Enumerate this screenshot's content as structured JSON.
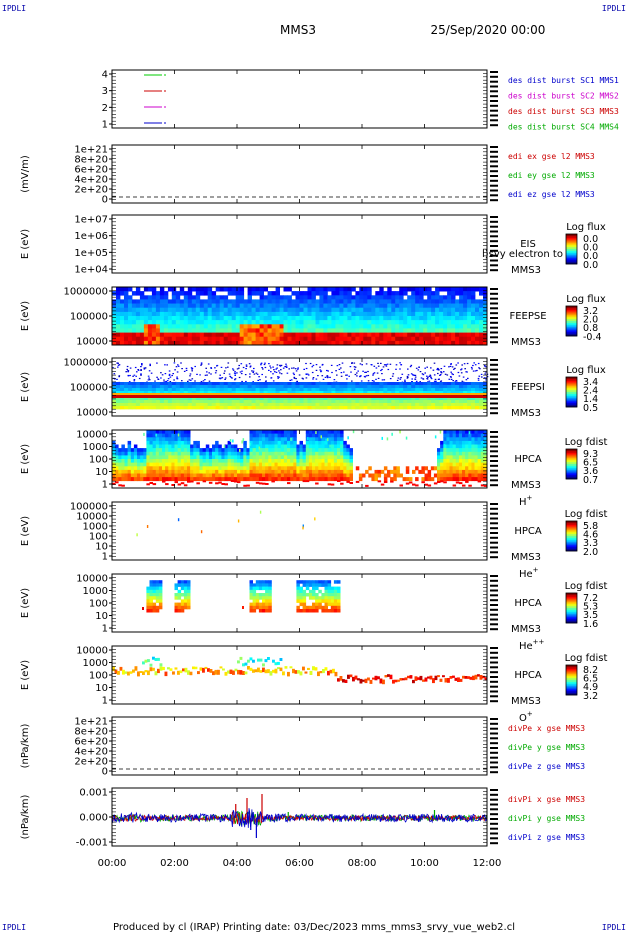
{
  "corners": {
    "tl": "IPDLI",
    "tr": "IPDLI",
    "bl": "IPDLI",
    "br": "IPDLI"
  },
  "header": {
    "spacecraft": "MMS3",
    "datetime": "25/Sep/2020 00:00"
  },
  "footer": "Produced by cl (IRAP)    Printing date: 03/Dec/2023    mms_mms3_srvy_vue_web2.cl",
  "chart_data": {
    "type": "multi-panel",
    "time_axis": {
      "ticks": [
        "00:00",
        "02:00",
        "04:00",
        "06:00",
        "08:00",
        "10:00",
        "12:00"
      ]
    },
    "panels": [
      {
        "id": "burst",
        "type": "line",
        "yticks": [
          "4",
          "3",
          "2",
          "1"
        ],
        "legend": [
          {
            "text": "des dist burst SC1 MMS1",
            "color": "#0000cc"
          },
          {
            "text": "des dist burst SC2 MMS2",
            "color": "#cc00cc"
          },
          {
            "text": "des dist burst SC3 MMS3",
            "color": "#cc0000"
          },
          {
            "text": "des dist burst SC4 MMS4",
            "color": "#00aa00"
          }
        ],
        "series": [
          {
            "y": 4,
            "color": "#00cc00"
          },
          {
            "y": 3,
            "color": "#cc0000"
          },
          {
            "y": 2,
            "color": "#cc00cc"
          },
          {
            "y": 1,
            "color": "#0000cc"
          }
        ]
      },
      {
        "id": "edi",
        "type": "line",
        "ylabel": "(mV/m)",
        "yticks": [
          "1e+21",
          "8e+20",
          "6e+20",
          "4e+20",
          "2e+20",
          "0"
        ],
        "legend": [
          {
            "text": "edi ex gse l2 MMS3",
            "color": "#cc0000"
          },
          {
            "text": "edi ey gse l2 MMS3",
            "color": "#00aa00"
          },
          {
            "text": "edi ez gse l2 MMS3",
            "color": "#0000cc"
          }
        ]
      },
      {
        "id": "eis",
        "type": "heatmap",
        "ylabel": "E (eV)",
        "yticks": [
          "1e+07",
          "1e+06",
          "1e+05",
          "1e+04"
        ],
        "label": [
          "EIS",
          "MMS3"
        ],
        "overlay_text": "l)svy electron to",
        "cbar": {
          "title": "Log flux",
          "ticks": [
            "0.0",
            "0.0",
            "0.0",
            "0.0"
          ]
        }
      },
      {
        "id": "feepse",
        "type": "heatmap",
        "ylabel": "E (eV)",
        "yticks": [
          "1000000",
          "100000",
          "10000"
        ],
        "label": [
          "FEEPSE",
          "MMS3"
        ],
        "cbar": {
          "title": "Log flux",
          "ticks": [
            "3.2",
            "2.0",
            "0.8",
            "-0.4"
          ]
        }
      },
      {
        "id": "feepsi",
        "type": "heatmap",
        "ylabel": "E (eV)",
        "yticks": [
          "1000000",
          "100000",
          "10000"
        ],
        "label": [
          "FEEPSI",
          "MMS3"
        ],
        "cbar": {
          "title": "Log flux",
          "ticks": [
            "3.4",
            "2.4",
            "1.4",
            "0.5"
          ]
        }
      },
      {
        "id": "hpca_h",
        "type": "heatmap",
        "ylabel": "E (eV)",
        "yticks": [
          "10000",
          "1000",
          "100",
          "10",
          "1"
        ],
        "label": [
          "HPCA",
          "MMS3"
        ],
        "species": {
          "base": "H",
          "sup": "+"
        },
        "cbar": {
          "title": "Log fdist",
          "ticks": [
            "9.3",
            "6.5",
            "3.6",
            "0.7"
          ]
        }
      },
      {
        "id": "hpca_he",
        "type": "heatmap",
        "ylabel": "E (eV)",
        "yticks": [
          "100000",
          "10000",
          "1000",
          "100",
          "10",
          "1"
        ],
        "label": [
          "HPCA",
          "MMS3"
        ],
        "species": {
          "base": "He",
          "sup": "+"
        },
        "cbar": {
          "title": "Log fdist",
          "ticks": [
            "5.8",
            "4.6",
            "3.3",
            "2.0"
          ]
        }
      },
      {
        "id": "hpca_hepp",
        "type": "heatmap",
        "ylabel": "E (eV)",
        "yticks": [
          "10000",
          "1000",
          "100",
          "10",
          "1"
        ],
        "label": [
          "HPCA",
          "MMS3"
        ],
        "species": {
          "base": "He",
          "sup": "++"
        },
        "cbar": {
          "title": "Log fdist",
          "ticks": [
            "7.2",
            "5.3",
            "3.5",
            "1.6"
          ]
        }
      },
      {
        "id": "hpca_o",
        "type": "heatmap",
        "ylabel": "E (eV)",
        "yticks": [
          "10000",
          "1000",
          "100",
          "10",
          "1"
        ],
        "label": [
          "HPCA",
          "MMS3"
        ],
        "species": {
          "base": "O",
          "sup": "+"
        },
        "cbar": {
          "title": "Log fdist",
          "ticks": [
            "8.2",
            "6.5",
            "4.9",
            "3.2"
          ]
        }
      },
      {
        "id": "divpe",
        "type": "line",
        "ylabel": "(nPa/km)",
        "yticks": [
          "1e+21",
          "8e+20",
          "6e+20",
          "4e+20",
          "2e+20",
          "0"
        ],
        "legend": [
          {
            "text": "divPe x gse MMS3",
            "color": "#cc0000"
          },
          {
            "text": "divPe y gse MMS3",
            "color": "#00aa00"
          },
          {
            "text": "divPe z gse MMS3",
            "color": "#0000cc"
          }
        ]
      },
      {
        "id": "divpi",
        "type": "line",
        "ylabel": "(nPa/km)",
        "yticks": [
          "0.001",
          "0.000",
          "-0.001"
        ],
        "legend": [
          {
            "text": "divPi x gse MMS3",
            "color": "#cc0000"
          },
          {
            "text": "divPi y gse MMS3",
            "color": "#00aa00"
          },
          {
            "text": "divPi z gse MMS3",
            "color": "#0000cc"
          }
        ]
      }
    ]
  }
}
